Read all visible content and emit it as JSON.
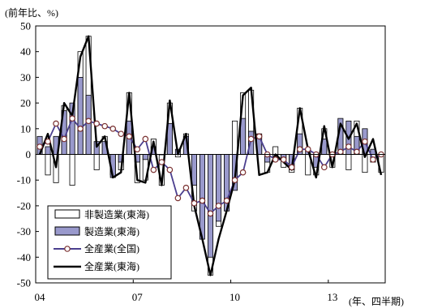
{
  "chart_data": {
    "type": "bar",
    "unit_label": "(前年比、%)",
    "xlabel": "(年、四半期)",
    "ylim": [
      -50,
      50
    ],
    "yticks": [
      50,
      40,
      30,
      20,
      10,
      0,
      -10,
      -20,
      -30,
      -40,
      -50
    ],
    "x_tick_labels": [
      {
        "label": "04",
        "index": 0
      },
      {
        "label": "07",
        "index": 12
      },
      {
        "label": "10",
        "index": 24
      },
      {
        "label": "13",
        "index": 36
      }
    ],
    "periods": 43,
    "legend": {
      "position": "bottom-left",
      "items": [
        "非製造業(東海)",
        "製造業(東海)",
        "全産業(全国)",
        "全産業(東海)"
      ]
    },
    "series": [
      {
        "name": "非製造業(東海)",
        "kind": "bar",
        "color": "#ffffff",
        "values": [
          2,
          -8,
          -11,
          19,
          -12,
          40,
          46,
          -6,
          7,
          -8,
          -6,
          24,
          -11,
          -10,
          6,
          -12,
          20,
          -1,
          8,
          -22,
          -32,
          -47,
          -28,
          -22,
          13,
          24,
          25,
          5,
          -7,
          3,
          -5,
          -7,
          18,
          -8,
          -8,
          10,
          -5,
          11,
          -6,
          13,
          -7,
          -3,
          -7
        ]
      },
      {
        "name": "製造業(東海)",
        "kind": "bar",
        "color": "#9999cc",
        "values": [
          7,
          3,
          7,
          17,
          20,
          30,
          23,
          5,
          5,
          -9,
          -3,
          13,
          -3,
          -2,
          3,
          0,
          12,
          2,
          7,
          -12,
          -33,
          -40,
          -26,
          -22,
          -14,
          14,
          9,
          8,
          -3,
          -2,
          -2,
          -6,
          8,
          2,
          -5,
          6,
          0,
          14,
          13,
          7,
          10,
          2,
          0
        ]
      },
      {
        "name": "全産業(全国)",
        "kind": "line",
        "color": "#4b3f8f",
        "values": [
          3,
          5,
          12,
          6,
          14,
          10,
          13,
          12,
          11,
          10,
          8,
          7,
          2,
          6,
          -6,
          -3,
          -6,
          -17,
          -13,
          -19,
          -18,
          -23,
          -20,
          -18,
          -10,
          -7,
          6,
          7,
          0,
          -2,
          -2,
          -5,
          2,
          2,
          0,
          -5,
          0,
          1,
          3,
          1,
          5,
          -2,
          0
        ]
      },
      {
        "name": "全産業(東海)",
        "kind": "line",
        "color": "#000000",
        "values": [
          0,
          8,
          -5,
          20,
          15,
          38,
          46,
          3,
          7,
          -9,
          -7,
          24,
          -10,
          -11,
          5,
          -12,
          21,
          0,
          8,
          -20,
          -33,
          -47,
          -33,
          -22,
          -10,
          23,
          26,
          -8,
          -7,
          0,
          -3,
          -6,
          18,
          2,
          -9,
          11,
          -5,
          12,
          6,
          12,
          -1,
          6,
          -8
        ]
      }
    ]
  }
}
